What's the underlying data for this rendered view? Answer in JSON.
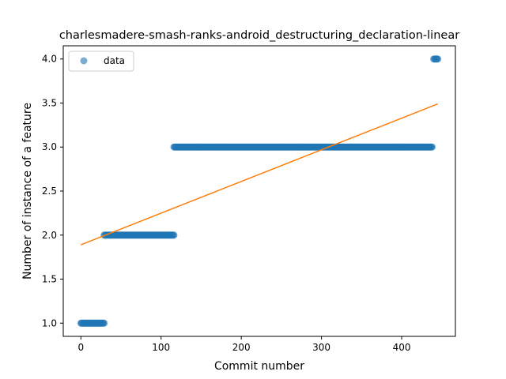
{
  "chart_data": {
    "type": "scatter",
    "title": "charlesmadere-smash-ranks-android_destructuring_declaration-linear",
    "xlabel": "Commit number",
    "ylabel": "Number of instance of a feature",
    "xlim": [
      -22,
      467
    ],
    "ylim": [
      0.85,
      4.15
    ],
    "x_ticks": [
      0,
      100,
      200,
      300,
      400
    ],
    "y_ticks": [
      1.0,
      1.5,
      2.0,
      2.5,
      3.0,
      3.5,
      4.0
    ],
    "y_tick_labels": [
      "1.0",
      "1.5",
      "2.0",
      "2.5",
      "3.0",
      "3.5",
      "4.0"
    ],
    "grid": false,
    "legend": {
      "position": "top-left",
      "entries": [
        "data"
      ]
    },
    "colors": {
      "points": "#1f77b4",
      "fit": "#ff7f0e"
    },
    "series": [
      {
        "name": "data",
        "kind": "scatter",
        "segments": [
          {
            "x_start": 0,
            "x_end": 29,
            "y": 1
          },
          {
            "x_start": 29,
            "x_end": 116,
            "y": 2
          },
          {
            "x_start": 116,
            "x_end": 438,
            "y": 3
          },
          {
            "x_start": 440,
            "x_end": 445,
            "y": 4
          }
        ]
      },
      {
        "kind": "line",
        "x": [
          0,
          445
        ],
        "y": [
          1.89,
          3.49
        ]
      }
    ]
  }
}
